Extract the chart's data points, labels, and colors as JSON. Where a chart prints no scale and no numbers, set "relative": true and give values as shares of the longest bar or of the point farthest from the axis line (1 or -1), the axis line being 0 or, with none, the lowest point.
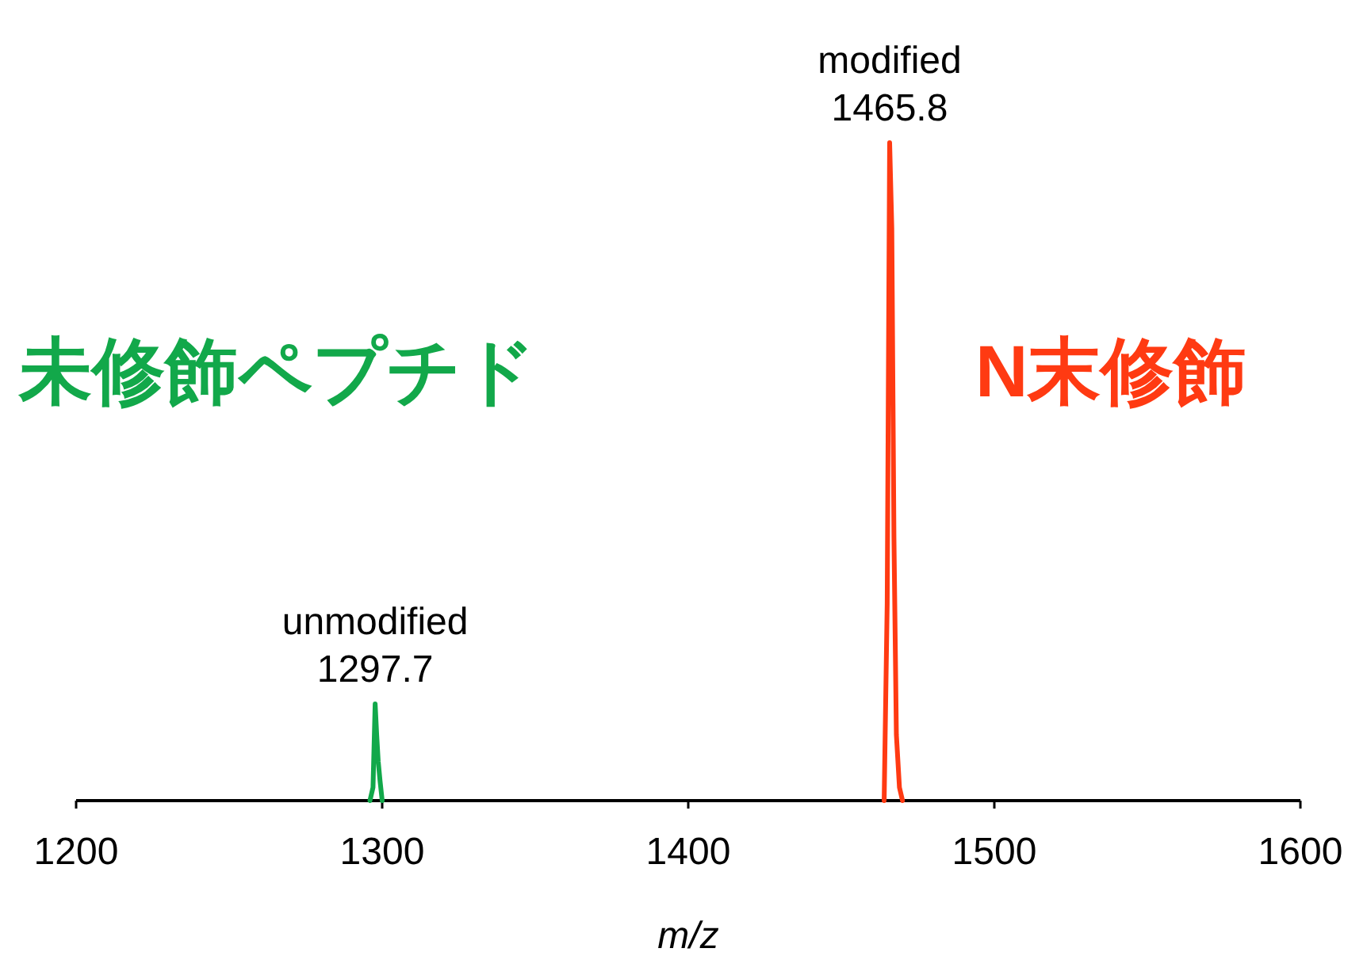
{
  "chart_data": {
    "type": "line",
    "relative": true,
    "xlabel": "m/z",
    "xlim": [
      1200,
      1600
    ],
    "xticks": [
      1200,
      1300,
      1400,
      1500,
      1600
    ],
    "series": [
      {
        "color": "#12a84a",
        "x": [
          1296,
          1297,
          1297.7,
          1298.2,
          1298.7,
          1299.3,
          1300
        ],
        "values": [
          0,
          0.02,
          0.147,
          0.1,
          0.06,
          0.03,
          0
        ]
      },
      {
        "color": "#ff3a12",
        "x": [
          1464,
          1465,
          1465.8,
          1466.5,
          1467.2,
          1468,
          1469,
          1470
        ],
        "values": [
          0,
          0.3,
          1,
          0.87,
          0.4,
          0.1,
          0.02,
          0
        ]
      }
    ],
    "annotations": [
      {
        "text": "unmodified\n1297.7",
        "x": 1297.7,
        "y": 0.147
      },
      {
        "text": "modified\n1465.8",
        "x": 1465.8,
        "y": 1
      },
      "未修飾ペプチド",
      "N末修飾"
    ],
    "grid": false
  }
}
